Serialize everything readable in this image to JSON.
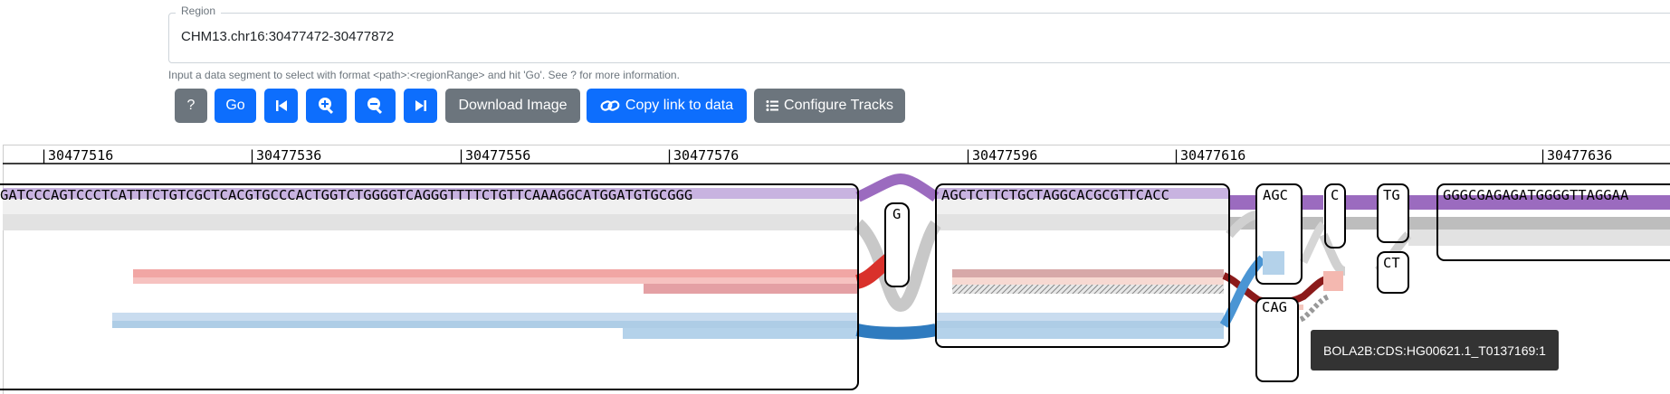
{
  "region": {
    "legend": "Region",
    "value": "CHM13.chr16:30477472-30477872",
    "help": "Input a data segment to select with format <path>:<regionRange> and hit 'Go'. See ? for more information."
  },
  "toolbar": {
    "help_label": "?",
    "go_label": "Go",
    "download_label": "Download Image",
    "copy_link_label": "Copy link to data",
    "configure_label": "Configure Tracks"
  },
  "ruler": {
    "ticks": [
      "|30477516",
      "|30477536",
      "|30477556",
      "|30477576",
      "|30477596",
      "|30477616",
      "|30477636"
    ]
  },
  "nodes": {
    "seq_main": "GATCCCAGTCCCTCATTTCTGTCGCTCACGTGCCCACTGGTCTGGGGTCAGGGTTTTCTGTTCAAAGGCATGGATGTGCGGG",
    "snp_g": "G",
    "seq_mid": "AGCTCTTCTGCTAGGCACGCGTTCACC",
    "agc": "AGC",
    "c": "C",
    "tg": "TG",
    "ct": "CT",
    "cag": "CAG",
    "seq_right": "GGGCGAGAGATGGGGTTAGGAA"
  },
  "tooltip": "BOLA2B:CDS:HG00621.1_T0137169:1",
  "colors": {
    "primary": "#0d6efd",
    "secondary": "#6c757d",
    "path_purple": "#9b6bbf",
    "path_gray": "#bdbdbd",
    "path_light": "#e2e2e2",
    "red": "#d9312b",
    "blue": "#2f7bbf",
    "tooltip_bg": "#333333"
  }
}
